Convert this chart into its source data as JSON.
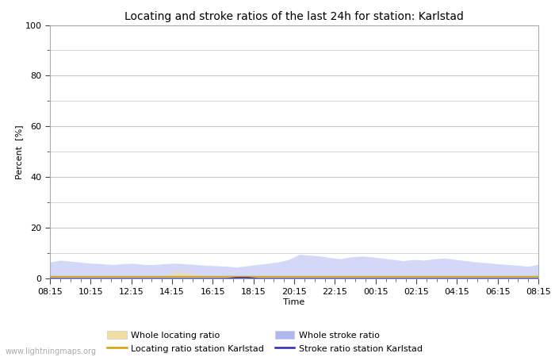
{
  "title": "Locating and stroke ratios of the last 24h for station: Karlstad",
  "xlabel": "Time",
  "ylabel": "Percent  [%]",
  "ylim": [
    0,
    100
  ],
  "yticks_major": [
    0,
    20,
    40,
    60,
    80,
    100
  ],
  "yticks_minor": [
    10,
    30,
    50,
    70,
    90
  ],
  "x_labels": [
    "08:15",
    "10:15",
    "12:15",
    "14:15",
    "16:15",
    "18:15",
    "20:15",
    "22:15",
    "00:15",
    "02:15",
    "04:15",
    "06:15",
    "08:15"
  ],
  "background_color": "#ffffff",
  "plot_bg_color": "#ffffff",
  "grid_color": "#c8c8c8",
  "watermark": "www.lightningmaps.org",
  "whole_locating_fill_color": "#f0dfa0",
  "whole_locating_fill_alpha": 0.55,
  "whole_stroke_fill_color": "#b0b8f0",
  "whole_stroke_fill_alpha": 0.55,
  "locating_line_color": "#d4a000",
  "stroke_line_color": "#2828b0",
  "whole_locating_ratio": [
    1.0,
    0.9,
    0.8,
    0.9,
    1.0,
    0.9,
    0.8,
    0.9,
    1.0,
    0.9,
    0.8,
    0.9,
    2.8,
    2.5,
    1.5,
    1.2,
    1.0,
    0.9,
    0.8,
    0.7,
    0.8,
    0.9,
    1.0,
    0.9,
    0.8,
    0.9,
    1.0,
    0.9,
    0.8,
    0.9,
    1.0,
    0.9,
    1.0,
    1.0,
    1.1,
    1.0,
    0.9,
    1.0,
    1.0,
    1.0,
    1.0,
    0.9,
    1.0,
    1.0,
    1.0,
    0.9,
    1.0,
    1.0
  ],
  "whole_stroke_ratio": [
    6.5,
    7.2,
    6.8,
    6.4,
    6.0,
    5.8,
    5.5,
    5.8,
    6.0,
    5.5,
    5.5,
    5.8,
    6.0,
    5.8,
    5.5,
    5.2,
    5.0,
    4.8,
    4.5,
    5.0,
    5.5,
    6.0,
    6.5,
    7.5,
    9.5,
    9.2,
    8.8,
    8.2,
    7.8,
    8.5,
    8.8,
    8.5,
    8.0,
    7.5,
    7.0,
    7.5,
    7.2,
    7.8,
    8.0,
    7.5,
    7.0,
    6.5,
    6.2,
    5.8,
    5.5,
    5.2,
    4.8,
    5.5
  ],
  "locating_ratio_station": [
    1.0,
    1.0,
    1.0,
    1.0,
    1.0,
    1.0,
    1.0,
    1.0,
    1.0,
    1.0,
    1.0,
    1.0,
    1.0,
    1.0,
    1.0,
    1.0,
    1.0,
    1.0,
    1.0,
    1.0,
    1.0,
    1.0,
    1.0,
    1.0,
    1.0,
    1.0,
    1.0,
    1.0,
    1.0,
    1.0,
    1.0,
    1.0,
    1.0,
    1.0,
    1.0,
    1.0,
    1.0,
    1.0,
    1.0,
    1.0,
    1.0,
    1.0,
    1.0,
    1.0,
    1.0,
    1.0,
    1.0,
    1.0
  ],
  "stroke_ratio_station": [
    0.0,
    0.0,
    0.0,
    0.0,
    0.0,
    0.0,
    0.0,
    0.0,
    0.0,
    0.0,
    0.0,
    0.0,
    0.0,
    0.0,
    0.0,
    0.0,
    0.0,
    0.0,
    0.3,
    0.3,
    0.0,
    0.0,
    0.0,
    0.0,
    0.0,
    0.0,
    0.0,
    0.0,
    0.0,
    0.0,
    0.0,
    0.0,
    0.0,
    0.0,
    0.0,
    0.0,
    0.0,
    0.0,
    0.0,
    0.0,
    0.0,
    0.0,
    0.0,
    0.0,
    0.0,
    0.0,
    0.0,
    0.0
  ],
  "legend_labels": [
    "Whole locating ratio",
    "Locating ratio station Karlstad",
    "Whole stroke ratio",
    "Stroke ratio station Karlstad"
  ],
  "title_fontsize": 10,
  "axis_fontsize": 8,
  "tick_fontsize": 8,
  "legend_fontsize": 8
}
